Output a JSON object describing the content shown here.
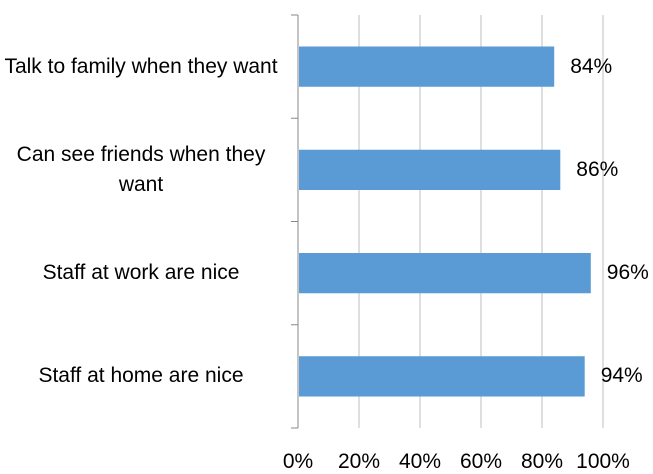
{
  "chart_data": {
    "type": "bar",
    "orientation": "horizontal",
    "categories": [
      "Talk to family when they want",
      "Can see friends when they want",
      "Staff at work are nice",
      "Staff at home are nice"
    ],
    "values": [
      84,
      86,
      96,
      94
    ],
    "data_labels": [
      "84%",
      "86%",
      "96%",
      "94%"
    ],
    "xlim": [
      0,
      100
    ],
    "x_ticks": [
      "0%",
      "20%",
      "40%",
      "60%",
      "80%",
      "100%"
    ],
    "colors": {
      "bar": "#5B9BD5",
      "axis": "#888888",
      "grid": "#BFBFBF"
    },
    "grid": true,
    "legend": "none"
  }
}
